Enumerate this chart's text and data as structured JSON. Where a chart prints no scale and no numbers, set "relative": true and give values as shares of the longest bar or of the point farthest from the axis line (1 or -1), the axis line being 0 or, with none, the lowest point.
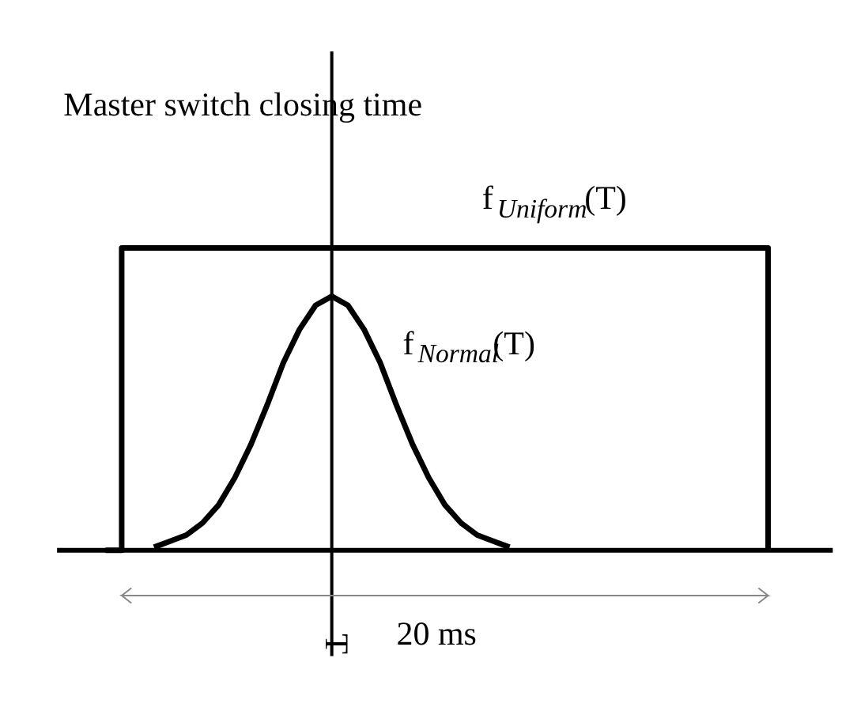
{
  "chart_data": {
    "type": "line",
    "relative": true,
    "categories": [
      null,
      null,
      null,
      null,
      null,
      null,
      null,
      null,
      null,
      null,
      null,
      null,
      null,
      null,
      null,
      null,
      null,
      null,
      null,
      null,
      null,
      null,
      null,
      null,
      null,
      null,
      null,
      null,
      null,
      null,
      null,
      null,
      null,
      null,
      null,
      null,
      null,
      null,
      null,
      null,
      null,
      null,
      null,
      null,
      null,
      null,
      null,
      null,
      null
    ],
    "series": [
      {
        "name": "f$_{Uniform}$(T)",
        "type": "step",
        "color": "#000000",
        "values": [
          null,
          null,
          null,
          0,
          1,
          1,
          1,
          1,
          1,
          1,
          1,
          1,
          1,
          1,
          1,
          1,
          1,
          1,
          1,
          1,
          1,
          1,
          1,
          1,
          1,
          1,
          1,
          1,
          1,
          1,
          1,
          1,
          1,
          1,
          1,
          1,
          1,
          1,
          1,
          1,
          1,
          1,
          1,
          1,
          0,
          null,
          null,
          null,
          null
        ]
      },
      {
        "name": "f$_{Normal}$(T)",
        "type": "line",
        "color": "#000000",
        "values": [
          null,
          null,
          null,
          null,
          null,
          null,
          0.01,
          0.03,
          0.05,
          0.09,
          0.15,
          0.24,
          0.35,
          0.48,
          0.62,
          0.73,
          0.81,
          0.84,
          0.81,
          0.73,
          0.62,
          0.48,
          0.35,
          0.24,
          0.15,
          0.09,
          0.05,
          0.03,
          0.01,
          null,
          null,
          null,
          null,
          null,
          null,
          null,
          null,
          null,
          null,
          null,
          null,
          null,
          null,
          null,
          null,
          null,
          null,
          null,
          null
        ]
      }
    ],
    "annotations": [
      "Master switch closing time",
      "20 ms",
      "T"
    ]
  }
}
